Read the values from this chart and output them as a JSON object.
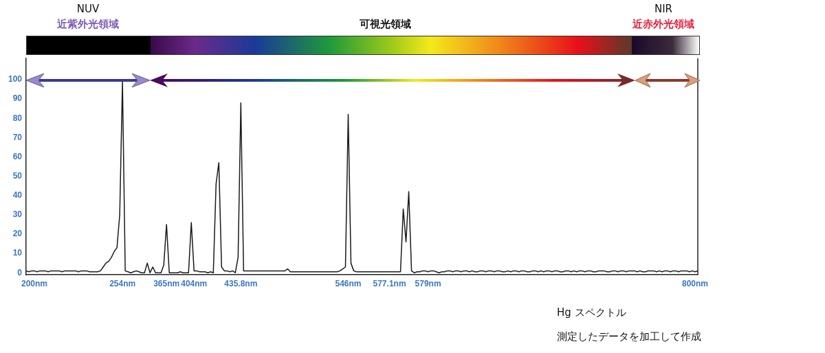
{
  "chart_data": {
    "type": "line",
    "annotations": [
      "NUV",
      "近紫外光領域",
      "可視光領域",
      "NIR",
      "近赤外光領域",
      "Hg スペクトル",
      "測定したデータを加工して作成"
    ],
    "categories": [
      null,
      null,
      null,
      "200nm",
      null,
      null,
      null,
      null,
      null,
      null,
      null,
      null,
      null,
      null,
      null,
      null,
      null,
      null,
      null,
      null,
      null,
      null,
      null,
      null,
      null,
      null,
      null,
      null,
      null,
      null,
      null,
      null,
      null,
      null,
      null,
      "254nm",
      null,
      null,
      null,
      null,
      null,
      null,
      null,
      null,
      null,
      null,
      null,
      null,
      null,
      null,
      null,
      "365nm",
      null,
      null,
      null,
      null,
      null,
      null,
      null,
      null,
      null,
      "404nm",
      null,
      null,
      null,
      null,
      null,
      null,
      null,
      null,
      null,
      null,
      null,
      null,
      null,
      null,
      null,
      null,
      "435.8nm",
      null,
      null,
      null,
      null,
      null,
      null,
      null,
      null,
      null,
      null,
      null,
      null,
      null,
      null,
      null,
      null,
      null,
      null,
      null,
      null,
      null,
      null,
      null,
      null,
      null,
      null,
      null,
      null,
      null,
      null,
      null,
      null,
      null,
      null,
      null,
      null,
      null,
      null,
      "546nm",
      null,
      null,
      null,
      null,
      null,
      null,
      null,
      null,
      null,
      null,
      null,
      null,
      null,
      null,
      "577.1nm",
      null,
      null,
      null,
      null,
      null,
      null,
      null,
      null,
      null,
      null,
      null,
      null,
      null,
      "579nm",
      null,
      null,
      null,
      null,
      null,
      null,
      null,
      null,
      null,
      null,
      null,
      null,
      null,
      null,
      null,
      null,
      null,
      null,
      null,
      null,
      null,
      null,
      null,
      null,
      null,
      null,
      null,
      null,
      null,
      null,
      null,
      null,
      null,
      null,
      null,
      null,
      null,
      null,
      null,
      null,
      null,
      null,
      null,
      null,
      null,
      null,
      null,
      null,
      null,
      null,
      null,
      null,
      null,
      null,
      null,
      null,
      null,
      null,
      null,
      null,
      null,
      null,
      null,
      null,
      null,
      null,
      null,
      null,
      null,
      null,
      null,
      null,
      null,
      null,
      null,
      null,
      null,
      null,
      null,
      null,
      null,
      null,
      null,
      null,
      null,
      null,
      null,
      null,
      null,
      null,
      null,
      null,
      null,
      null,
      null,
      null,
      "800nm",
      null
    ],
    "values": [
      1,
      0.5,
      1,
      1,
      0.5,
      1,
      1,
      1,
      0.5,
      1,
      1,
      1,
      1,
      0.5,
      1,
      1,
      1,
      1,
      1,
      0.5,
      1,
      1,
      1,
      0.5,
      0.5,
      0.5,
      0.5,
      1,
      3,
      5,
      6,
      8,
      11,
      13,
      30,
      99,
      1,
      0.5,
      0,
      0.5,
      1,
      0.5,
      0,
      0,
      5,
      0,
      3,
      0,
      0,
      0,
      4,
      25,
      0,
      0,
      0,
      0,
      0.5,
      0,
      0,
      0,
      26,
      1,
      1,
      0.5,
      0.5,
      0.5,
      0,
      0.5,
      0,
      46,
      57,
      3,
      1,
      1,
      0.5,
      1,
      0,
      8,
      88,
      1,
      1,
      1,
      1,
      1,
      1,
      1,
      1,
      1,
      1,
      1,
      1,
      1,
      1,
      1,
      1,
      2,
      0.5,
      0.5,
      0.5,
      0.5,
      0.5,
      0.5,
      0.5,
      0.5,
      0.5,
      0.5,
      0.5,
      0.5,
      0.5,
      0.5,
      0.5,
      0.5,
      0.5,
      0.5,
      1,
      2,
      3,
      82,
      5,
      1,
      0.5,
      0.5,
      0.5,
      0.5,
      0.5,
      0.5,
      0.5,
      0.5,
      0.5,
      0.5,
      0.5,
      0.5,
      0.5,
      0.5,
      0.5,
      0.5,
      0.5,
      33,
      16,
      42,
      1,
      0,
      0.5,
      0.5,
      1,
      1,
      0.5,
      1,
      1,
      0.5,
      0,
      0.5,
      0.5,
      1,
      1,
      0.5,
      1,
      1,
      0.5,
      1,
      1,
      0.5,
      1,
      0.5,
      0.5,
      1,
      1,
      0.5,
      1,
      1,
      0.5,
      1,
      1,
      0.5,
      0.5,
      1,
      0.5,
      1,
      1,
      0.5,
      1,
      1,
      0.5,
      0.5,
      1,
      1,
      0.5,
      1,
      0.5,
      1,
      1,
      0.5,
      1,
      1,
      0.5,
      0.5,
      1,
      1,
      0.5,
      1,
      0.5,
      1,
      1,
      0.5,
      1,
      1,
      0.5,
      0.5,
      1,
      1,
      1,
      0.5,
      0.5,
      1,
      1,
      0.5,
      1,
      1,
      0.5,
      1,
      1,
      1,
      0.5,
      1,
      0.5,
      0.5,
      1,
      1,
      1,
      0.5,
      1,
      0.5,
      1,
      1,
      0.5,
      1,
      1,
      0.5,
      1,
      1,
      1,
      0.5,
      1,
      0.5,
      1
    ],
    "color": "#1a1a1a",
    "marker": "none",
    "ylim": [
      -1,
      111
    ],
    "yticks": [
      0,
      10,
      20,
      30,
      40,
      50,
      60,
      70,
      80,
      90,
      100
    ]
  }
}
